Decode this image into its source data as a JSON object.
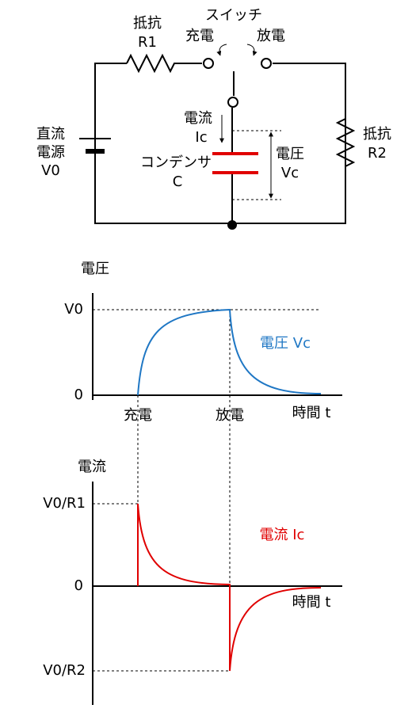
{
  "circuit": {
    "resistor1": [
      "抵抗",
      "R1"
    ],
    "switch": "スイッチ",
    "charge": "充電",
    "discharge": "放電",
    "source": [
      "直流",
      "電源",
      "V0"
    ],
    "current": [
      "電流",
      "Ic"
    ],
    "capacitor": [
      "コンデンサ",
      "C"
    ],
    "voltage": [
      "電圧",
      "Vc"
    ],
    "resistor2": [
      "抵抗",
      "R2"
    ]
  },
  "voltage_graph": {
    "y_label": "電圧",
    "y_ticks": [
      "V0",
      "0"
    ],
    "curve_label": "電圧 Vc",
    "x_ticks": [
      "充電",
      "放電"
    ],
    "x_label": "時間 t"
  },
  "current_graph": {
    "y_label": "電流",
    "y_ticks": [
      "V0/R1",
      "0",
      "V0/R2"
    ],
    "curve_label": "電流 Ic",
    "x_label": "時間 t"
  }
}
